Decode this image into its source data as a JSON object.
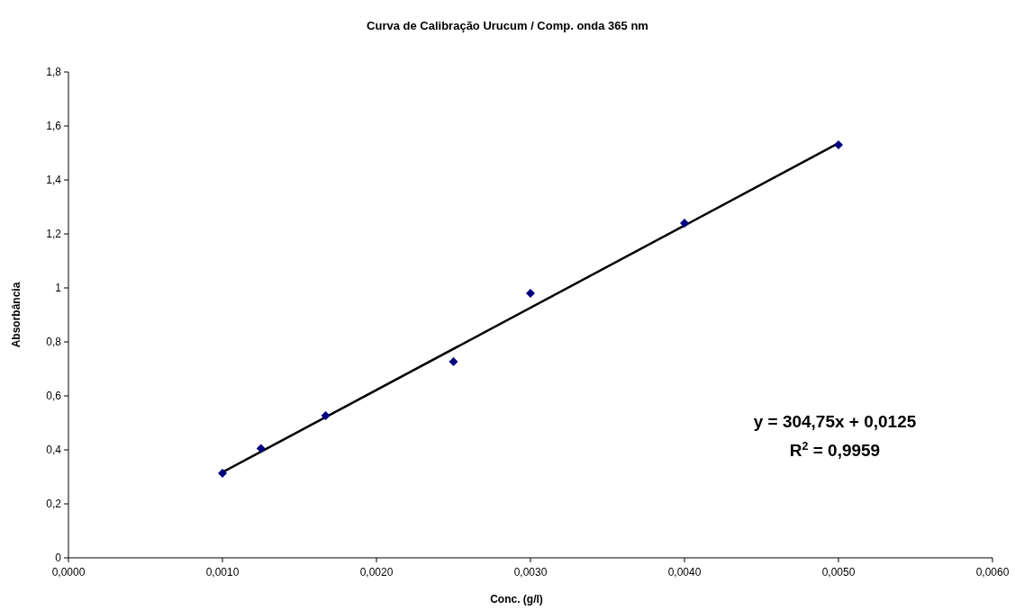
{
  "chart_data": {
    "type": "scatter",
    "title": "Curva de Calibração Urucum / Comp. onda 365 nm",
    "xlabel": "Conc. (g/l)",
    "ylabel": "Absorbância",
    "xlim": [
      0,
      0.006
    ],
    "ylim": [
      0,
      1.8
    ],
    "xticks": [
      {
        "value": 0,
        "label": "0,0000"
      },
      {
        "value": 0.001,
        "label": "0,0010"
      },
      {
        "value": 0.002,
        "label": "0,0020"
      },
      {
        "value": 0.003,
        "label": "0,0030"
      },
      {
        "value": 0.004,
        "label": "0,0040"
      },
      {
        "value": 0.005,
        "label": "0,0050"
      },
      {
        "value": 0.006,
        "label": "0,0060"
      }
    ],
    "yticks": [
      0,
      {
        "value": 0.2,
        "label": "0,2"
      },
      {
        "value": 0.4,
        "label": "0,4"
      },
      {
        "value": 0.6,
        "label": "0,6"
      },
      {
        "value": 0.8,
        "label": "0,8"
      },
      1,
      {
        "value": 1.2,
        "label": "1,2"
      },
      {
        "value": 1.4,
        "label": "1,4"
      },
      {
        "value": 1.6,
        "label": "1,6"
      },
      {
        "value": 1.8,
        "label": "1,8"
      }
    ],
    "series": [
      {
        "color": "#000080",
        "marker": "diamond",
        "x": [
          0.001,
          0.00125,
          0.00167,
          0.0025,
          0.003,
          0.004,
          0.005
        ],
        "values": [
          0.313,
          0.405,
          0.527,
          0.727,
          0.98,
          1.24,
          1.53
        ]
      },
      {
        "type": "line",
        "color": "#000000",
        "x": [
          0.001,
          0.005
        ],
        "values": [
          0.317,
          1.536
        ]
      }
    ],
    "annotations": [
      "y = 304,75x + 0,0125",
      "R$^{2}$ = 0,9959"
    ],
    "grid": false
  }
}
